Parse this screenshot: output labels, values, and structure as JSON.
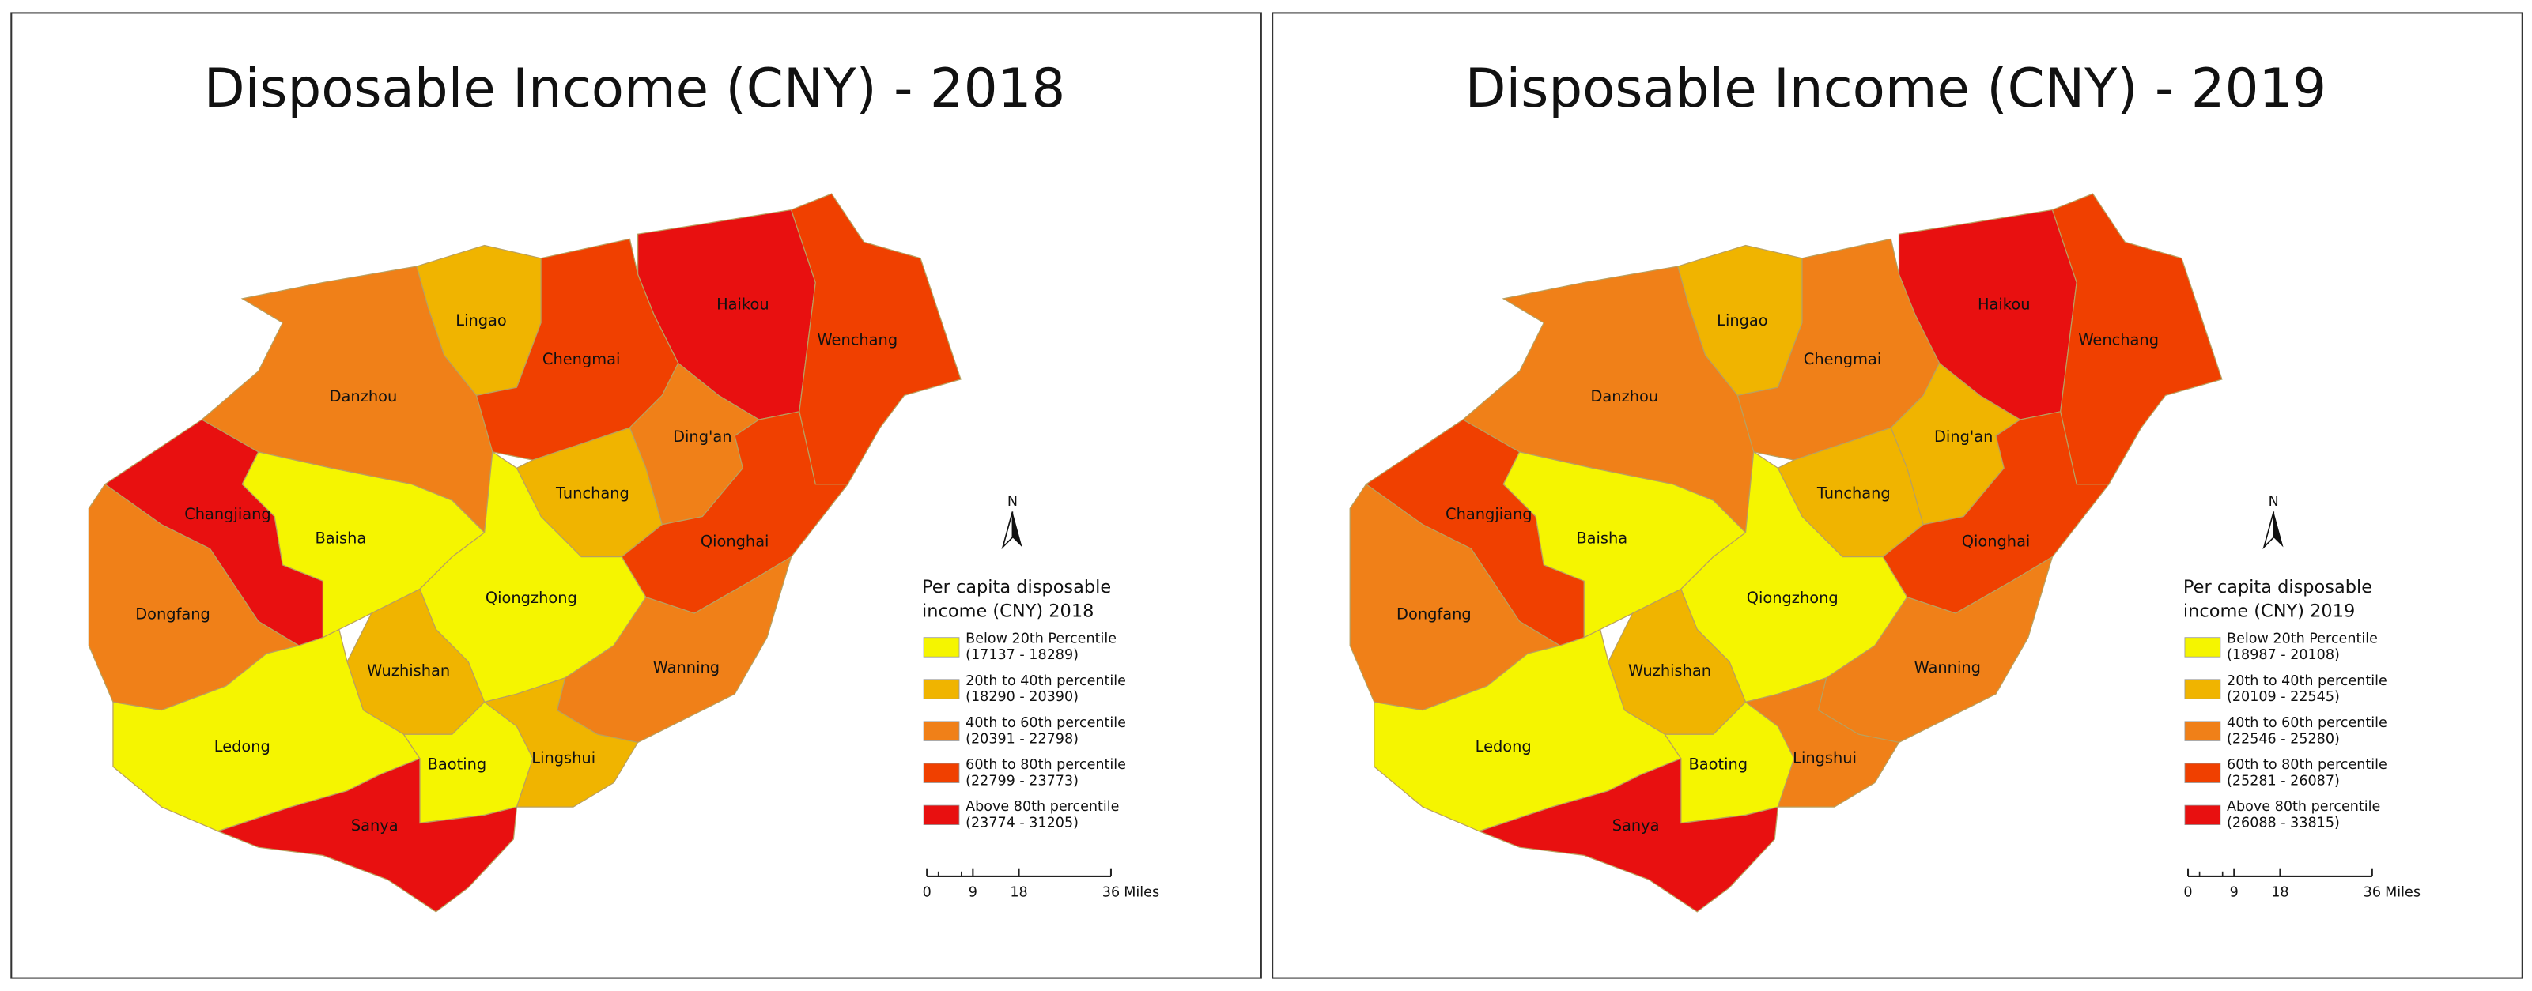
{
  "maps": [
    {
      "title": "Disposable Income (CNY) - 2018",
      "legend": {
        "title": [
          "Per capita disposable",
          "income (CNY) 2018"
        ],
        "items": [
          {
            "label": "Below 20th Percentile",
            "range": "(17137 - 18289)",
            "color": "#f5f500"
          },
          {
            "label": "20th to 40th percentile",
            "range": "(18290 - 20390)",
            "color": "#f0b400"
          },
          {
            "label": "40th to 60th percentile",
            "range": "(20391 - 22798)",
            "color": "#f08018"
          },
          {
            "label": "60th to 80th percentile",
            "range": "(22799 - 23773)",
            "color": "#f04000"
          },
          {
            "label": "Above 80th percentile",
            "range": "(23774 - 31205)",
            "color": "#e81010"
          }
        ]
      },
      "north": "N",
      "scale_bar": {
        "ticks": [
          0,
          9,
          18,
          36
        ],
        "unit": "Miles"
      },
      "regions": [
        {
          "name": "Haikou",
          "color": "#e81010"
        },
        {
          "name": "Wenchang",
          "color": "#f04000"
        },
        {
          "name": "Lingao",
          "color": "#f0b400"
        },
        {
          "name": "Chengmai",
          "color": "#f04000"
        },
        {
          "name": "Danzhou",
          "color": "#f08018"
        },
        {
          "name": "Ding'an",
          "color": "#f08018"
        },
        {
          "name": "Tunchang",
          "color": "#f0b400"
        },
        {
          "name": "Qionghai",
          "color": "#f04000"
        },
        {
          "name": "Changjiang",
          "color": "#e81010"
        },
        {
          "name": "Baisha",
          "color": "#f5f500"
        },
        {
          "name": "Qiongzhong",
          "color": "#f5f500"
        },
        {
          "name": "Dongfang",
          "color": "#f08018"
        },
        {
          "name": "Wuzhishan",
          "color": "#f0b400"
        },
        {
          "name": "Wanning",
          "color": "#f08018"
        },
        {
          "name": "Ledong",
          "color": "#f5f500"
        },
        {
          "name": "Baoting",
          "color": "#f5f500"
        },
        {
          "name": "Lingshui",
          "color": "#f0b400"
        },
        {
          "name": "Sanya",
          "color": "#e81010"
        }
      ]
    },
    {
      "title": "Disposable Income (CNY) - 2019",
      "legend": {
        "title": [
          "Per capita disposable",
          "income (CNY) 2019"
        ],
        "items": [
          {
            "label": "Below 20th Percentile",
            "range": "(18987 - 20108)",
            "color": "#f5f500"
          },
          {
            "label": "20th to 40th percentile",
            "range": "(20109 - 22545)",
            "color": "#f0b400"
          },
          {
            "label": "40th to 60th percentile",
            "range": "(22546 - 25280)",
            "color": "#f08018"
          },
          {
            "label": "60th to 80th percentile",
            "range": "(25281 - 26087)",
            "color": "#f04000"
          },
          {
            "label": "Above 80th percentile",
            "range": "(26088 - 33815)",
            "color": "#e81010"
          }
        ]
      },
      "north": "N",
      "scale_bar": {
        "ticks": [
          0,
          9,
          18,
          36
        ],
        "unit": "Miles"
      },
      "regions": [
        {
          "name": "Haikou",
          "color": "#e81010"
        },
        {
          "name": "Wenchang",
          "color": "#f04000"
        },
        {
          "name": "Lingao",
          "color": "#f0b400"
        },
        {
          "name": "Chengmai",
          "color": "#f08018"
        },
        {
          "name": "Danzhou",
          "color": "#f08018"
        },
        {
          "name": "Ding'an",
          "color": "#f0b400"
        },
        {
          "name": "Tunchang",
          "color": "#f0b400"
        },
        {
          "name": "Qionghai",
          "color": "#f04000"
        },
        {
          "name": "Changjiang",
          "color": "#f04000"
        },
        {
          "name": "Baisha",
          "color": "#f5f500"
        },
        {
          "name": "Qiongzhong",
          "color": "#f5f500"
        },
        {
          "name": "Dongfang",
          "color": "#f08018"
        },
        {
          "name": "Wuzhishan",
          "color": "#f0b400"
        },
        {
          "name": "Wanning",
          "color": "#f08018"
        },
        {
          "name": "Ledong",
          "color": "#f5f500"
        },
        {
          "name": "Baoting",
          "color": "#f5f500"
        },
        {
          "name": "Lingshui",
          "color": "#f08018"
        },
        {
          "name": "Sanya",
          "color": "#e81010"
        }
      ]
    }
  ]
}
